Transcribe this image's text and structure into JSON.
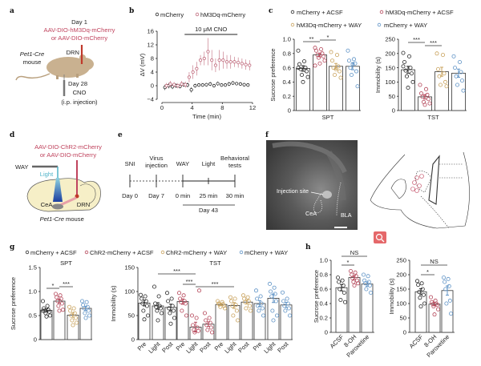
{
  "panels": {
    "a": {
      "label": "a",
      "day1": "Day 1",
      "virus_line1": "AAV-DIO-hM3Dq-mCherry",
      "virus_line2": "or AAV-DIO-mCherry",
      "strain": "Pet1-Cre",
      "mouse": "mouse",
      "drn": "DRN",
      "day28": "Day 28",
      "cno": "CNO",
      "ip": "(i.p. injection)"
    },
    "b": {
      "label": "b"
    },
    "c": {
      "label": "c",
      "legend": [
        "mCherry + ACSF",
        "hM3Dq-mCherry + ACSF",
        "hM3Dq-mCherry + WAY",
        "mCherry + WAY"
      ]
    },
    "d": {
      "label": "d",
      "virus_line1": "AAV-DIO-ChR2-mCherry",
      "virus_line2": "or AAV-DIO-mCherry",
      "way": "WAY",
      "light": "Light",
      "cea": "CeA",
      "drn": "DRN",
      "strain": "Pet1-Cre",
      "mouse": "mouse"
    },
    "e": {
      "label": "e",
      "events": [
        {
          "top": "SNI",
          "top2": "",
          "bottom": "Day 0"
        },
        {
          "top": "Virus",
          "top2": "injection",
          "bottom": "Day 7"
        },
        {
          "top": "WAY",
          "top2": "",
          "bottom": "0 min"
        },
        {
          "top": "Light",
          "top2": "",
          "bottom": "25 min"
        },
        {
          "top": "Behavioral",
          "top2": "tests",
          "bottom": "30 min"
        }
      ],
      "day": "Day 43"
    },
    "f": {
      "label": "f",
      "injection_site": "Injection site",
      "cea": "CeA",
      "bla": "BLA",
      "zoom_icon": "magnifier-icon"
    },
    "g": {
      "label": "g",
      "legend": [
        "mCherry + ACSF",
        "ChR2-mCherry + ACSF",
        "ChR2-mCherry + WAY",
        "mCherry + WAY"
      ]
    },
    "h": {
      "label": "h"
    }
  },
  "colors": {
    "mcherry": "#2a2a2a",
    "hm3dq": "#b5475a",
    "way": "#c9a35e",
    "mcherry_way": "#5f93c6",
    "annotation_red": "#c0445e",
    "light_blue": "#4fb3c8"
  },
  "chart_data": [
    {
      "id": "b",
      "type": "line",
      "xlabel": "Time (min)",
      "ylabel": "ΔV (mV)",
      "xlim": [
        0,
        12
      ],
      "ylim": [
        -4,
        16
      ],
      "xticks": [
        0,
        4,
        8,
        12
      ],
      "yticks": [
        -4,
        0,
        4,
        8,
        12,
        16
      ],
      "annotation": {
        "label": "10 μM CNO",
        "from": 3,
        "to": 10
      },
      "x": [
        0.5,
        1,
        1.5,
        2,
        2.5,
        3,
        3.5,
        4,
        4.5,
        5,
        5.5,
        6,
        6.5,
        7,
        7.5,
        8,
        8.5,
        9,
        9.5,
        10,
        10.5,
        11,
        11.5
      ],
      "series": [
        {
          "name": "mCherry",
          "color": "#2a2a2a",
          "values": [
            -0.5,
            0,
            -0.3,
            0,
            -0.2,
            0.3,
            0.2,
            -1.2,
            0,
            0.2,
            0.2,
            0.3,
            0.5,
            0,
            0.6,
            0.2,
            0.2,
            0.5,
            0.8,
            0.6,
            0.5,
            0.3,
            0.2
          ],
          "error": [
            0.8,
            0.8,
            0.7,
            0.7,
            0.6,
            0.6,
            0.7,
            0.8,
            0.6,
            0.5,
            0.5,
            0.5,
            0.6,
            0.5,
            0.6,
            0.5,
            0.5,
            0.6,
            0.6,
            0.5,
            0.5,
            0.5,
            0.5
          ]
        },
        {
          "name": "hM3Dq-mCherry",
          "color": "#c06a7c",
          "values": [
            0,
            0.5,
            0.3,
            0,
            0.5,
            0.3,
            2.5,
            4,
            5,
            7.5,
            8,
            10,
            7.5,
            6,
            7.5,
            7.5,
            7,
            7,
            7,
            6.8,
            6.5,
            6.2,
            6
          ],
          "error": [
            0.8,
            0.9,
            0.8,
            0.8,
            0.9,
            0.9,
            1.5,
            2,
            2,
            1.5,
            2,
            4,
            3,
            2,
            3,
            2.5,
            2,
            2,
            1.5,
            1.5,
            1.5,
            1.5,
            1.5
          ]
        }
      ]
    },
    {
      "id": "c-spt",
      "type": "bar",
      "xlabel": "SPT",
      "ylabel": "Sucrose preference",
      "ylim": [
        0,
        1.0
      ],
      "yticks": [
        0,
        0.2,
        0.4,
        0.6,
        0.8,
        1.0
      ],
      "ytick_labels": [
        "0",
        "0.2",
        "0.4",
        "0.6",
        "0.8",
        "1.0"
      ],
      "categories": [
        "mCherry + ACSF",
        "hM3Dq-mCherry + ACSF",
        "hM3Dq-mCherry + WAY",
        "mCherry + WAY"
      ],
      "colors": [
        "#2a2a2a",
        "#b5475a",
        "#c9a35e",
        "#5f93c6"
      ],
      "values": [
        0.59,
        0.78,
        0.62,
        0.62
      ],
      "points": [
        [
          0.84,
          0.69,
          0.65,
          0.6,
          0.58,
          0.55,
          0.5,
          0.47,
          0.4,
          0.6
        ],
        [
          0.88,
          0.86,
          0.84,
          0.8,
          0.78,
          0.76,
          0.74,
          0.7,
          0.66,
          0.63
        ],
        [
          0.82,
          0.78,
          0.7,
          0.62,
          0.6,
          0.55,
          0.5,
          0.46,
          0.58
        ],
        [
          0.84,
          0.72,
          0.7,
          0.66,
          0.6,
          0.55,
          0.5,
          0.34,
          0.65
        ]
      ],
      "significance": [
        {
          "from": 0,
          "to": 1,
          "label": "**"
        },
        {
          "from": 1,
          "to": 2,
          "label": "*"
        }
      ]
    },
    {
      "id": "c-tst",
      "type": "bar",
      "xlabel": "TST",
      "ylabel": "Immobility (s)",
      "ylim": [
        0,
        250
      ],
      "yticks": [
        0,
        50,
        100,
        150,
        200,
        250
      ],
      "ytick_labels": [
        "0",
        "50",
        "100",
        "150",
        "200",
        "250"
      ],
      "categories": [
        "mCherry + ACSF",
        "hM3Dq-mCherry + ACSF",
        "hM3Dq-mCherry + WAY",
        "mCherry + WAY"
      ],
      "colors": [
        "#2a2a2a",
        "#b5475a",
        "#c9a35e",
        "#5f93c6"
      ],
      "values": [
        143,
        48,
        136,
        131
      ],
      "points": [
        [
          202,
          190,
          170,
          150,
          140,
          130,
          120,
          100,
          80,
          155
        ],
        [
          90,
          75,
          60,
          55,
          48,
          40,
          30,
          25,
          20
        ],
        [
          200,
          195,
          145,
          130,
          120,
          100,
          90,
          85
        ],
        [
          190,
          170,
          150,
          135,
          120,
          105,
          90,
          70
        ]
      ],
      "significance": [
        {
          "from": 0,
          "to": 1,
          "label": "***"
        },
        {
          "from": 1,
          "to": 2,
          "label": "***"
        }
      ]
    },
    {
      "id": "g-spt",
      "type": "bar",
      "title": "SPT",
      "ylabel": "Sucrose preference",
      "ylim": [
        0,
        1.5
      ],
      "yticks": [
        0,
        0.5,
        1.0,
        1.5
      ],
      "ytick_labels": [
        "0",
        "0.5",
        "1.0",
        "1.5"
      ],
      "categories": [
        "mCherry + ACSF",
        "ChR2-mCherry + ACSF",
        "ChR2-mCherry + WAY",
        "mCherry + WAY"
      ],
      "colors": [
        "#2a2a2a",
        "#b5475a",
        "#c9a35e",
        "#5f93c6"
      ],
      "values": [
        0.61,
        0.8,
        0.51,
        0.65
      ],
      "points": [
        [
          0.8,
          0.7,
          0.65,
          0.62,
          0.6,
          0.58,
          0.55,
          0.5,
          0.48,
          0.6
        ],
        [
          0.95,
          0.92,
          0.88,
          0.85,
          0.8,
          0.75,
          0.7,
          0.62,
          0.6
        ],
        [
          0.68,
          0.65,
          0.6,
          0.55,
          0.5,
          0.45,
          0.4,
          0.35,
          0.3
        ],
        [
          0.8,
          0.78,
          0.72,
          0.68,
          0.65,
          0.6,
          0.55,
          0.5,
          0.45
        ]
      ],
      "significance": [
        {
          "from": 0,
          "to": 1,
          "label": "*"
        },
        {
          "from": 1,
          "to": 2,
          "label": "***"
        }
      ]
    },
    {
      "id": "g-tst",
      "type": "bar",
      "title": "TST",
      "ylabel": "Immobility (s)",
      "ylim": [
        0,
        150
      ],
      "yticks": [
        0,
        50,
        100,
        150
      ],
      "ytick_labels": [
        "0",
        "50",
        "100",
        "150"
      ],
      "categories": [
        "Pre",
        "Light",
        "Post",
        "Pre",
        "Light",
        "Post",
        "Pre",
        "Light",
        "Post",
        "Pre",
        "Light",
        "Post"
      ],
      "colors": [
        "#2a2a2a",
        "#2a2a2a",
        "#2a2a2a",
        "#b5475a",
        "#b5475a",
        "#b5475a",
        "#c9a35e",
        "#c9a35e",
        "#c9a35e",
        "#5f93c6",
        "#5f93c6",
        "#5f93c6"
      ],
      "values": [
        76,
        70,
        67,
        79,
        26,
        32,
        73,
        71,
        78,
        75,
        86,
        72
      ],
      "points": [
        [
          93,
          90,
          85,
          80,
          75,
          70,
          60,
          50,
          42
        ],
        [
          110,
          90,
          75,
          70,
          68,
          65,
          60,
          55,
          40
        ],
        [
          97,
          85,
          80,
          70,
          65,
          60,
          55,
          45,
          33
        ],
        [
          97,
          92,
          85,
          80,
          78,
          75,
          60,
          50
        ],
        [
          50,
          45,
          30,
          25,
          20,
          18,
          15,
          102
        ],
        [
          55,
          45,
          40,
          35,
          30,
          25,
          20,
          15
        ],
        [
          80,
          78,
          75,
          74,
          73,
          70,
          68,
          65
        ],
        [
          88,
          85,
          80,
          72,
          70,
          60,
          50,
          40
        ],
        [
          92,
          88,
          85,
          80,
          78,
          70,
          65,
          60
        ],
        [
          102,
          90,
          85,
          75,
          70,
          65,
          60,
          50
        ],
        [
          116,
          108,
          100,
          95,
          90,
          80,
          60,
          50,
          40
        ],
        [
          98,
          85,
          80,
          75,
          70,
          65,
          60,
          50
        ]
      ],
      "significance": [
        {
          "from": 1,
          "to": 4,
          "label": "***"
        },
        {
          "from": 3,
          "to": 4,
          "label": "***"
        },
        {
          "from": 4,
          "to": 7,
          "label": "***"
        }
      ]
    },
    {
      "id": "h-spt",
      "type": "bar",
      "ylabel": "Sucrose preference",
      "ylim": [
        0,
        1.0
      ],
      "yticks": [
        0,
        0.2,
        0.4,
        0.6,
        0.8,
        1.0
      ],
      "ytick_labels": [
        "0",
        "0.2",
        "0.4",
        "0.6",
        "0.8",
        "1.0"
      ],
      "categories": [
        "ACSF",
        "8-OH",
        "Paroxetine"
      ],
      "colors": [
        "#2a2a2a",
        "#b5475a",
        "#5f93c6"
      ],
      "values": [
        0.62,
        0.76,
        0.67
      ],
      "points": [
        [
          0.76,
          0.72,
          0.7,
          0.65,
          0.6,
          0.55,
          0.45,
          0.42
        ],
        [
          0.85,
          0.83,
          0.8,
          0.78,
          0.75,
          0.72,
          0.7,
          0.68,
          0.65
        ],
        [
          0.8,
          0.78,
          0.72,
          0.7,
          0.68,
          0.65,
          0.6,
          0.55
        ]
      ],
      "significance": [
        {
          "from": 0,
          "to": 2,
          "label": "NS"
        },
        {
          "from": 0,
          "to": 1,
          "label": "*"
        }
      ]
    },
    {
      "id": "h-tst",
      "type": "bar",
      "ylabel": "Immobility (s)",
      "ylim": [
        0,
        250
      ],
      "yticks": [
        0,
        50,
        100,
        150,
        200,
        250
      ],
      "ytick_labels": [
        "0",
        "50",
        "100",
        "150",
        "200",
        "250"
      ],
      "categories": [
        "ACSF",
        "8-OH",
        "Paroxetine"
      ],
      "colors": [
        "#2a2a2a",
        "#b5475a",
        "#5f93c6"
      ],
      "values": [
        141,
        98,
        145
      ],
      "points": [
        [
          178,
          170,
          165,
          150,
          140,
          130,
          120,
          100,
          90
        ],
        [
          122,
          110,
          105,
          100,
          98,
          95,
          90,
          80,
          62
        ],
        [
          190,
          185,
          175,
          160,
          150,
          110,
          100,
          65
        ]
      ],
      "significance": [
        {
          "from": 0,
          "to": 2,
          "label": "NS"
        },
        {
          "from": 0,
          "to": 1,
          "label": "*"
        }
      ]
    }
  ]
}
